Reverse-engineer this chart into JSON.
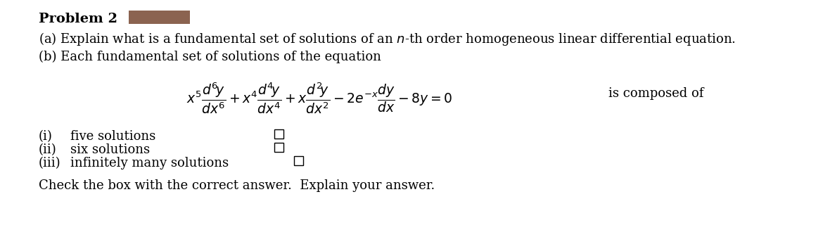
{
  "bg_color": "#ffffff",
  "title_bold": "Problem 2",
  "title_box_color": "#8B6350",
  "line_a": "(a) Explain what is a fundamental set of solutions of an $n$-th order homogeneous linear differential equation.",
  "line_b": "(b) Each fundamental set of solutions of the equation",
  "eq_suffix": "is composed of",
  "option_i_label": "(i)",
  "option_i_text": "five solutions",
  "option_ii_label": "(ii)",
  "option_ii_text": "six solutions",
  "option_iii_label": "(iii)",
  "option_iii_text": "infinitely many solutions",
  "footer": "Check the box with the correct answer.  Explain your answer.",
  "font_size": 13,
  "eq_font_size": 13.5
}
